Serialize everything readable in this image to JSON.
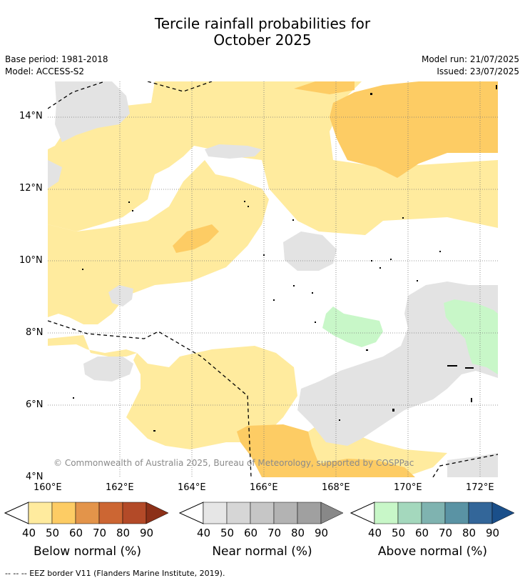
{
  "title": {
    "line1": "Tercile rainfall probabilities for",
    "line2": "October 2025"
  },
  "meta": {
    "base_period": "Base period: 1981-2018",
    "model": "Model: ACCESS-S2",
    "model_run": "Model run: 21/07/2025",
    "issued": "Issued: 23/07/2025"
  },
  "map": {
    "lat_labels": [
      "14°N",
      "12°N",
      "10°N",
      "8°N",
      "6°N",
      "4°N"
    ],
    "lon_labels": [
      "160°E",
      "162°E",
      "164°E",
      "166°E",
      "168°E",
      "170°E",
      "172°E"
    ],
    "copyright": "© Commonwealth of Australia 2025, Bureau of Meteorology, supported by COSPPac"
  },
  "colorbars": [
    {
      "title": "Below normal (%)",
      "ticks": [
        "40",
        "50",
        "60",
        "70",
        "80",
        "90"
      ],
      "colors": [
        "#ffeb9e",
        "#fdcc64",
        "#e3944a",
        "#cc6633",
        "#b34a28",
        "#8c3018"
      ]
    },
    {
      "title": "Near normal (%)",
      "ticks": [
        "40",
        "50",
        "60",
        "70",
        "80",
        "90"
      ],
      "colors": [
        "#e6e6e6",
        "#d6d6d6",
        "#c6c6c6",
        "#b3b3b3",
        "#a0a0a0",
        "#888888"
      ]
    },
    {
      "title": "Above normal (%)",
      "ticks": [
        "40",
        "50",
        "60",
        "70",
        "80",
        "90"
      ],
      "colors": [
        "#c8f7c8",
        "#a4d8bd",
        "#7fb3b0",
        "#5a93a4",
        "#336699",
        "#1a4f8a"
      ]
    }
  ],
  "footnote": "--  --  -- EEZ border V11 (Flanders Marine Institute, 2019)."
}
